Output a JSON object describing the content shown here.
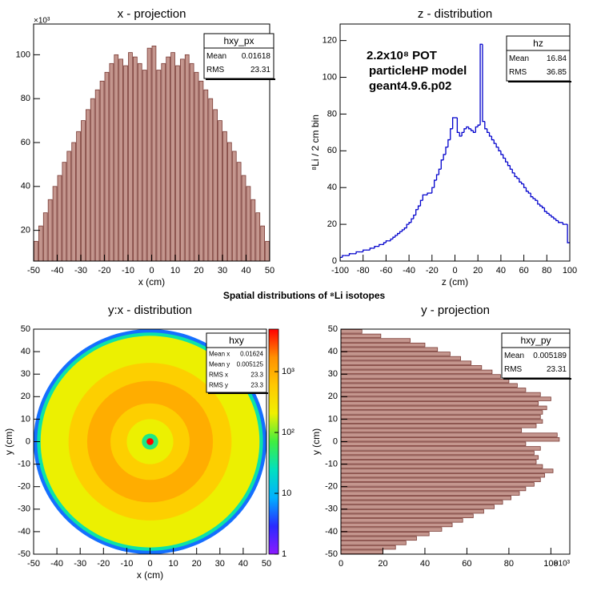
{
  "figure_title": "Spatial distributions of ⁸Li isotopes",
  "chart_data": [
    {
      "type": "histogram",
      "title": "x - projection",
      "xlabel": "x (cm)",
      "y_multiplier": "×10³",
      "bins": [
        -50,
        -48,
        -46,
        -44,
        -42,
        -40,
        -38,
        -36,
        -34,
        -32,
        -30,
        -28,
        -26,
        -24,
        -22,
        -20,
        -18,
        -16,
        -14,
        -12,
        -10,
        -8,
        -6,
        -4,
        -2,
        0,
        2,
        4,
        6,
        8,
        10,
        12,
        14,
        16,
        18,
        20,
        22,
        24,
        26,
        28,
        30,
        32,
        34,
        36,
        38,
        40,
        42,
        44,
        46,
        48,
        50
      ],
      "values": [
        15,
        22,
        28,
        34,
        40,
        45,
        51,
        56,
        60,
        65,
        70,
        75,
        80,
        84,
        88,
        92,
        96,
        100,
        98,
        95,
        101,
        99,
        96,
        93,
        103,
        104,
        93,
        96,
        99,
        101,
        95,
        98,
        100,
        96,
        92,
        88,
        84,
        80,
        75,
        70,
        65,
        60,
        56,
        51,
        45,
        40,
        34,
        28,
        22,
        15
      ],
      "xlim": [
        -50,
        50
      ],
      "ylim": [
        6,
        114
      ],
      "xticks": [
        -50,
        -40,
        -30,
        -20,
        -10,
        0,
        10,
        20,
        30,
        40,
        50
      ],
      "yticks": [
        20,
        40,
        60,
        80,
        100
      ],
      "color": "#c4968e",
      "edgecolor": "#7a3a34",
      "stats": {
        "title": "hxy_px",
        "labels": [
          "Mean",
          "RMS"
        ],
        "values": [
          0.01618,
          23.31
        ]
      }
    },
    {
      "type": "step_histogram",
      "title": "z - distribution",
      "xlabel": "z (cm)",
      "ylabel": "⁸Li / 2 cm bin",
      "bins": [
        -100,
        -98,
        -96,
        -94,
        -92,
        -90,
        -88,
        -86,
        -84,
        -82,
        -80,
        -78,
        -76,
        -74,
        -72,
        -70,
        -68,
        -66,
        -64,
        -62,
        -60,
        -58,
        -56,
        -54,
        -52,
        -50,
        -48,
        -46,
        -44,
        -42,
        -40,
        -38,
        -36,
        -34,
        -32,
        -30,
        -28,
        -26,
        -24,
        -22,
        -20,
        -18,
        -16,
        -14,
        -12,
        -10,
        -8,
        -6,
        -4,
        -2,
        0,
        2,
        4,
        6,
        8,
        10,
        12,
        14,
        16,
        18,
        20,
        22,
        24,
        26,
        28,
        30,
        32,
        34,
        36,
        38,
        40,
        42,
        44,
        46,
        48,
        50,
        52,
        54,
        56,
        58,
        60,
        62,
        64,
        66,
        68,
        70,
        72,
        74,
        76,
        78,
        80,
        82,
        84,
        86,
        88,
        90,
        92,
        94,
        96,
        98,
        100
      ],
      "values": [
        2,
        3,
        3,
        3,
        4,
        4,
        4,
        5,
        5,
        5,
        6,
        6,
        6,
        7,
        7,
        8,
        8,
        9,
        9,
        10,
        11,
        11,
        12,
        13,
        14,
        15,
        16,
        17,
        18,
        20,
        21,
        23,
        25,
        28,
        30,
        33,
        36,
        36,
        37,
        37,
        40,
        44,
        47,
        50,
        55,
        58,
        62,
        66,
        72,
        78,
        78,
        70,
        68,
        70,
        72,
        73,
        72,
        71,
        70,
        73,
        74,
        118,
        76,
        72,
        70,
        68,
        66,
        64,
        62,
        60,
        58,
        56,
        54,
        52,
        50,
        48,
        46,
        45,
        43,
        42,
        40,
        38,
        37,
        35,
        34,
        33,
        31,
        30,
        29,
        27,
        26,
        25,
        24,
        23,
        22,
        21,
        21,
        20,
        20,
        10
      ],
      "xlim": [
        -100,
        100
      ],
      "ylim": [
        0,
        129
      ],
      "xticks": [
        -100,
        -80,
        -60,
        -40,
        -20,
        0,
        20,
        40,
        60,
        80,
        100
      ],
      "yticks": [
        0,
        20,
        40,
        60,
        80,
        100,
        120
      ],
      "color": "#0000cc",
      "annotations": [
        "2.2x10⁸ POT",
        "particleHP model",
        "geant4.9.6.p02"
      ],
      "stats": {
        "title": "hz",
        "labels": [
          "Mean",
          "RMS"
        ],
        "values": [
          16.84,
          36.85
        ]
      }
    },
    {
      "type": "radial_map",
      "title": "y:x - distribution",
      "xlabel": "x (cm)",
      "ylabel": "y (cm)",
      "radii": [
        50,
        48.5,
        47,
        35,
        27,
        17,
        10,
        3.5,
        1.5
      ],
      "values": [
        5,
        30,
        200,
        500,
        1000,
        500,
        200,
        40,
        5000
      ],
      "xlim": [
        -50,
        50
      ],
      "ylim": [
        -50,
        50
      ],
      "zlim": [
        1,
        5000
      ],
      "zlog": true,
      "xticks": [
        -50,
        -40,
        -30,
        -20,
        -10,
        0,
        10,
        20,
        30,
        40,
        50
      ],
      "yticks": [
        -50,
        -40,
        -30,
        -20,
        -10,
        0,
        10,
        20,
        30,
        40,
        50
      ],
      "zticks": [
        1,
        10,
        {
          "value": 100,
          "label": "10²"
        },
        {
          "value": 1000,
          "label": "10³"
        }
      ],
      "palette": [
        "#8c1aff",
        "#2a2aff",
        "#00b0ff",
        "#00e0c0",
        "#40ee40",
        "#f0f000",
        "#ffc800",
        "#ff9000",
        "#ff0000"
      ],
      "stats": {
        "title": "hxy",
        "labels": [
          "Mean x",
          "Mean y",
          "RMS x",
          "RMS y"
        ],
        "values": [
          0.01624,
          0.005125,
          23.3,
          23.3
        ]
      }
    },
    {
      "type": "horizontal_histogram",
      "title": "y - projection",
      "ylabel": "y (cm)",
      "x_multiplier": "×10³",
      "bins": [
        -50,
        -48,
        -46,
        -44,
        -42,
        -40,
        -38,
        -36,
        -34,
        -32,
        -30,
        -28,
        -26,
        -24,
        -22,
        -20,
        -18,
        -16,
        -14,
        -12,
        -10,
        -8,
        -6,
        -4,
        -2,
        0,
        2,
        4,
        6,
        8,
        10,
        12,
        14,
        16,
        18,
        20,
        22,
        24,
        26,
        28,
        30,
        32,
        34,
        36,
        38,
        40,
        42,
        44,
        46,
        48,
        50
      ],
      "values": [
        20,
        26,
        31,
        36,
        42,
        48,
        53,
        58,
        63,
        68,
        73,
        77,
        81,
        85,
        88,
        92,
        95,
        97,
        101,
        96,
        93,
        94,
        92,
        95,
        88,
        104,
        103,
        86,
        93,
        96,
        95,
        96,
        98,
        94,
        100,
        95,
        88,
        84,
        80,
        76,
        72,
        67,
        62,
        57,
        52,
        46,
        40,
        33,
        19,
        10
      ],
      "xlim": [
        0,
        109
      ],
      "ylim": [
        -50,
        50
      ],
      "xticks": [
        0,
        20,
        40,
        60,
        80,
        100
      ],
      "yticks": [
        -50,
        -40,
        -30,
        -20,
        -10,
        0,
        10,
        20,
        30,
        40,
        50
      ],
      "color": "#c4968e",
      "edgecolor": "#7a3a34",
      "stats": {
        "title": "hxy_py",
        "labels": [
          "Mean",
          "RMS"
        ],
        "values": [
          0.005189,
          23.31
        ]
      }
    }
  ]
}
